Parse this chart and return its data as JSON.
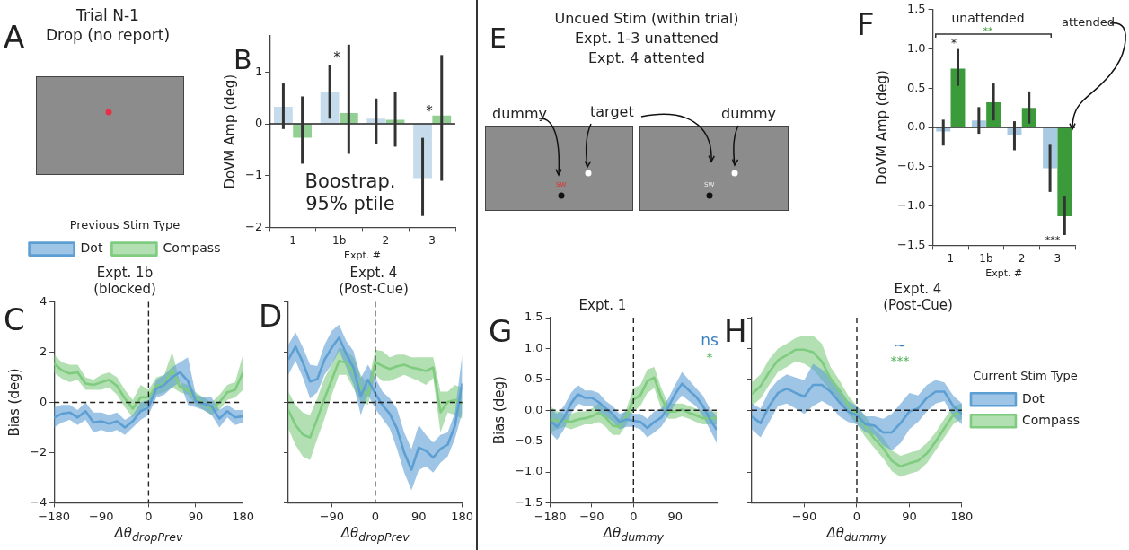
{
  "chart_data": [
    {
      "type": "other",
      "title": "Trial N-1",
      "subtitle": "Drop (no report)",
      "annotations": [
        "A"
      ]
    },
    {
      "type": "bar",
      "categories": [
        "1",
        "1b",
        "2",
        "3"
      ],
      "xlabel": "Expt. #",
      "ylabel": "DoVM Amp (deg)",
      "ylim": [
        -2,
        1.7
      ],
      "yticks": [
        -2,
        -1,
        0,
        1
      ],
      "series": [
        {
          "color": "#c6dbeb",
          "values": [
            0.33,
            0.62,
            0.1,
            -1.05
          ],
          "errors": [
            [
              -0.1,
              0.78
            ],
            [
              0.1,
              1.14
            ],
            [
              -0.38,
              0.49
            ],
            [
              -1.78,
              -0.27
            ]
          ]
        },
        {
          "color": "#92cf92",
          "values": [
            -0.27,
            0.21,
            0.08,
            0.16
          ],
          "errors": [
            [
              -0.77,
              0.53
            ],
            [
              -0.58,
              1.53
            ],
            [
              -0.44,
              0.62
            ],
            [
              -1.1,
              1.33
            ]
          ]
        }
      ],
      "ref_lines": [
        {
          "axis": "y",
          "value": 0
        }
      ],
      "annotations": [
        "B",
        "*",
        "*",
        "Boostrap.",
        "95% ptile"
      ]
    },
    {
      "type": "line",
      "title": "Expt. 1b\n(blocked)",
      "xlabel": "Δθ$_{dropPrev}$",
      "ylabel": "Bias (deg)",
      "xlim": [
        -180,
        180
      ],
      "xticks": [
        -180,
        -90,
        0,
        90,
        180
      ],
      "ylim": [
        -4,
        4
      ],
      "yticks": [
        -4,
        -2,
        0,
        2,
        4
      ],
      "legend": "top",
      "legend_title": "Previous Stim Type",
      "x": [
        -180,
        -165,
        -150,
        -135,
        -120,
        -105,
        -90,
        -75,
        -60,
        -45,
        -30,
        -15,
        0,
        15,
        30,
        45,
        60,
        75,
        90,
        105,
        120,
        135,
        150,
        165,
        180
      ],
      "series": [
        {
          "name": "Dot",
          "color": "#5d9fd3",
          "values": [
            -0.6,
            -0.45,
            -0.4,
            -0.6,
            -0.35,
            -0.8,
            -0.75,
            -0.85,
            -0.75,
            -1.0,
            -0.75,
            -0.35,
            -0.2,
            0.55,
            0.7,
            1.0,
            1.2,
            0.85,
            0.05,
            -0.05,
            -0.15,
            -0.65,
            -0.35,
            -0.6,
            -0.55
          ],
          "lower": [
            -1.0,
            -0.8,
            -0.7,
            -0.9,
            -0.7,
            -1.2,
            -1.1,
            -1.2,
            -1.1,
            -1.3,
            -1.0,
            -0.7,
            -0.5,
            0.2,
            0.3,
            0.6,
            0.8,
            -0.1,
            -0.2,
            -0.3,
            -0.5,
            -1.0,
            -0.6,
            -0.9,
            -0.8
          ],
          "upper": [
            -0.2,
            -0.1,
            -0.1,
            -0.3,
            0.0,
            -0.4,
            -0.4,
            -0.5,
            -0.4,
            -0.7,
            -0.5,
            0.0,
            0.1,
            0.9,
            1.1,
            1.4,
            1.6,
            1.8,
            0.3,
            0.2,
            0.2,
            -0.3,
            -0.1,
            -0.3,
            -0.3
          ]
        },
        {
          "name": "Compass",
          "color": "#7fcb7f",
          "values": [
            1.55,
            1.28,
            1.15,
            1.2,
            0.75,
            0.7,
            0.8,
            0.9,
            0.65,
            0.15,
            -0.25,
            0.2,
            0.2,
            0.65,
            0.75,
            1.3,
            0.6,
            0.5,
            0.15,
            -0.05,
            -0.25,
            0,
            0.4,
            0.5,
            1.2
          ],
          "lower": [
            1.2,
            0.95,
            0.8,
            0.9,
            0.5,
            0.5,
            0.5,
            0.6,
            0.3,
            -0.2,
            -0.6,
            -0.3,
            -0.1,
            0.3,
            0.4,
            0.6,
            0.4,
            0.3,
            -0.1,
            -0.3,
            -0.5,
            -0.3,
            0.1,
            0.2,
            0.5
          ],
          "upper": [
            1.9,
            1.6,
            1.5,
            1.5,
            1.0,
            0.9,
            1.1,
            1.2,
            1.0,
            0.5,
            0.1,
            0.7,
            0.5,
            1.0,
            1.1,
            2.0,
            0.8,
            0.7,
            0.4,
            0.2,
            0.0,
            0.3,
            0.7,
            0.8,
            1.9
          ]
        }
      ],
      "ref_lines": [
        {
          "axis": "x",
          "value": 0,
          "line_style": "dashed"
        },
        {
          "axis": "y",
          "value": 0,
          "line_style": "dashed"
        }
      ],
      "annotations": [
        "C"
      ]
    },
    {
      "type": "line",
      "title": "Expt. 4\n(Post-Cue)",
      "xlabel": "Δθ$_{dropPrev}$",
      "xlim": [
        -180,
        180
      ],
      "xticks": [
        -90,
        0,
        90,
        180
      ],
      "ylim": [
        -4,
        4
      ],
      "yticks": [
        -4,
        -2,
        0,
        2,
        4
      ],
      "tick_labels": "x",
      "x": [
        -180,
        -165,
        -150,
        -135,
        -120,
        -105,
        -90,
        -75,
        -60,
        -45,
        -30,
        -15,
        0,
        15,
        30,
        45,
        60,
        75,
        90,
        105,
        120,
        135,
        150,
        165,
        180
      ],
      "series": [
        {
          "color": "#5d9fd3",
          "values": [
            1.7,
            2.23,
            1.6,
            0.83,
            0.93,
            1.7,
            2.18,
            2.58,
            1.93,
            1.38,
            0.24,
            0.9,
            0.36,
            -0.11,
            -0.45,
            -1.05,
            -2.0,
            -2.68,
            -1.8,
            -1.93,
            -2.2,
            -1.85,
            -1.68,
            -0.93,
            0.75
          ],
          "lower": [
            1.1,
            1.65,
            1.0,
            0.15,
            0.4,
            1.1,
            1.5,
            2.05,
            1.4,
            0.7,
            -0.5,
            0.3,
            -0.25,
            -0.65,
            -1.05,
            -1.85,
            -2.8,
            -3.5,
            -2.7,
            -2.55,
            -2.8,
            -2.4,
            -2.15,
            -1.45,
            -0.4
          ],
          "upper": [
            2.3,
            2.8,
            2.2,
            1.5,
            1.45,
            2.3,
            2.85,
            3.1,
            2.45,
            2.05,
            0.97,
            1.5,
            0.97,
            0.43,
            0.16,
            -0.25,
            -1.2,
            -1.85,
            -0.9,
            -1.3,
            -1.6,
            -1.3,
            -1.2,
            -0.4,
            1.9
          ]
        },
        {
          "color": "#7fcb7f",
          "values": [
            -0.31,
            -0.9,
            -1.28,
            -1.4,
            -0.65,
            0.16,
            0.9,
            1.65,
            1.58,
            1.18,
            0.57,
            0.3,
            1.6,
            1.45,
            1.33,
            1.44,
            1.5,
            1.39,
            1.33,
            1.25,
            1.39,
            -0.39,
            0.02,
            0.1,
            -0.04
          ],
          "lower": [
            -1.05,
            -1.7,
            -2.15,
            -2.3,
            -1.45,
            -0.65,
            0.3,
            1.1,
            1.1,
            0.55,
            0.03,
            -0.1,
            1.1,
            0.85,
            0.85,
            0.97,
            1.1,
            0.97,
            0.85,
            0.7,
            0.97,
            -1.2,
            -0.4,
            -0.5,
            -0.65
          ],
          "upper": [
            0.43,
            -0.1,
            -0.4,
            -0.5,
            0.16,
            0.97,
            1.5,
            2.2,
            2.05,
            1.8,
            1.1,
            0.7,
            2.1,
            2.05,
            1.8,
            1.9,
            1.9,
            1.8,
            1.8,
            1.8,
            1.8,
            0.43,
            0.43,
            0.7,
            0.57
          ]
        }
      ],
      "ref_lines": [
        {
          "axis": "x",
          "value": 0,
          "line_style": "dashed"
        },
        {
          "axis": "y",
          "value": 0,
          "line_style": "dashed"
        }
      ],
      "annotations": [
        "D"
      ]
    },
    {
      "type": "other",
      "title": "Uncued Stim (within trial)",
      "annotations": [
        "E",
        "Expt. 1-3 unattened",
        "Expt. 4 attented",
        "dummy",
        "target",
        "dummy",
        "SW",
        "SW"
      ]
    },
    {
      "type": "bar",
      "categories": [
        "1",
        "1b",
        "2",
        "3"
      ],
      "xlabel": "Expt. #",
      "ylabel": "DoVM Amp (deg)",
      "ylim": [
        -1.5,
        1.5
      ],
      "yticks": [
        {
          "value": -1.5,
          "label": "−1.5"
        },
        {
          "value": -1,
          "label": "−1.0"
        },
        {
          "value": -0.5,
          "label": "−0.5"
        },
        {
          "value": 0,
          "label": "0.0"
        },
        {
          "value": 0.5,
          "label": "0.5"
        },
        {
          "value": 1,
          "label": "1.0"
        },
        {
          "value": 1.5,
          "label": "1.5"
        }
      ],
      "series": [
        {
          "color": "#a8cae2",
          "values": [
            -0.05,
            0.09,
            -0.1,
            -0.52
          ],
          "errors": [
            [
              -0.23,
              0.1
            ],
            [
              -0.08,
              0.26
            ],
            [
              -0.29,
              0.08
            ],
            [
              -0.82,
              -0.22
            ]
          ]
        },
        {
          "color": "#3b9b3b",
          "values": [
            0.75,
            0.32,
            0.25,
            -1.13
          ],
          "errors": [
            [
              0.53,
              1.0
            ],
            [
              0.09,
              0.56
            ],
            [
              0.05,
              0.46
            ],
            [
              -1.37,
              -0.88
            ]
          ]
        }
      ],
      "ref_lines": [
        {
          "axis": "y",
          "value": 0
        }
      ],
      "annotations": [
        "F",
        "unattended",
        "**",
        "*",
        "attended",
        "***"
      ]
    },
    {
      "type": "line",
      "title": "Expt. 1",
      "xlabel": "Δθ$_{dummy}$",
      "ylabel": "Bias (deg)",
      "xlim": [
        -180,
        180
      ],
      "xticks": [
        -180,
        -90,
        0,
        90
      ],
      "ylim": [
        -1.5,
        1.5
      ],
      "yticks": [
        {
          "value": -1.5,
          "label": "−1.5"
        },
        {
          "value": -1,
          "label": "−1.0"
        },
        {
          "value": -0.5,
          "label": "−0.5"
        },
        {
          "value": 0,
          "label": "0.0"
        },
        {
          "value": 0.5,
          "label": "0.5"
        },
        {
          "value": 1,
          "label": "1.0"
        },
        {
          "value": 1.5,
          "label": "1.5"
        }
      ],
      "x": [
        -180,
        -165,
        -150,
        -135,
        -120,
        -105,
        -90,
        -75,
        -60,
        -45,
        -30,
        -15,
        0,
        15,
        30,
        45,
        60,
        75,
        90,
        105,
        120,
        135,
        150,
        165,
        180
      ],
      "series": [
        {
          "color": "#5d9fd3",
          "values": [
            -0.17,
            -0.27,
            -0.12,
            0.11,
            0.26,
            0.2,
            0.2,
            0.13,
            0.03,
            -0.06,
            -0.19,
            -0.15,
            -0.17,
            -0.19,
            -0.29,
            -0.19,
            -0.12,
            0.05,
            0.26,
            0.43,
            0.32,
            0.22,
            0.07,
            -0.14,
            -0.32
          ],
          "lower": [
            -0.36,
            -0.48,
            -0.31,
            -0.06,
            0.11,
            0.07,
            0.07,
            -0.02,
            -0.1,
            -0.19,
            -0.31,
            -0.27,
            -0.27,
            -0.31,
            -0.44,
            -0.36,
            -0.27,
            -0.1,
            0.11,
            0.24,
            0.15,
            0.07,
            -0.1,
            -0.31,
            -0.53
          ],
          "upper": [
            0.03,
            -0.06,
            0.07,
            0.28,
            0.41,
            0.32,
            0.32,
            0.28,
            0.15,
            0.07,
            -0.06,
            -0.02,
            -0.06,
            -0.06,
            -0.14,
            -0.02,
            0.03,
            0.19,
            0.41,
            0.62,
            0.49,
            0.36,
            0.24,
            0.03,
            -0.1
          ]
        },
        {
          "color": "#7fcb7f",
          "values": [
            -0.15,
            -0.17,
            -0.17,
            -0.19,
            -0.15,
            -0.13,
            -0.1,
            -0.04,
            -0.12,
            -0.25,
            -0.27,
            -0.1,
            0.17,
            0.24,
            0.47,
            0.53,
            0.2,
            -0.02,
            -0.02,
            0.01,
            -0.04,
            -0.08,
            -0.13,
            -0.13,
            -0.13
          ],
          "lower": [
            -0.36,
            -0.31,
            -0.27,
            -0.31,
            -0.27,
            -0.23,
            -0.23,
            -0.19,
            -0.27,
            -0.4,
            -0.4,
            -0.23,
            -0.02,
            0.07,
            0.28,
            0.36,
            0.03,
            -0.14,
            -0.14,
            -0.1,
            -0.14,
            -0.19,
            -0.23,
            -0.23,
            -0.23
          ],
          "upper": [
            0.07,
            -0.02,
            -0.06,
            -0.06,
            -0.02,
            -0.02,
            0.03,
            0.11,
            0.03,
            -0.1,
            -0.14,
            0.03,
            0.36,
            0.41,
            0.66,
            0.7,
            0.36,
            0.11,
            0.11,
            0.11,
            0.07,
            0.03,
            -0.02,
            -0.02,
            -0.02
          ]
        }
      ],
      "ref_lines": [
        {
          "axis": "x",
          "value": 0,
          "line_style": "dashed"
        },
        {
          "axis": "y",
          "value": 0,
          "line_style": "dashed"
        }
      ],
      "annotations": [
        "G",
        "ns",
        "*"
      ]
    },
    {
      "type": "line",
      "title": "Expt. 4\n(Post-Cue)",
      "xlabel": "Δθ$_{dummy}$",
      "xlim": [
        -180,
        180
      ],
      "xticks": [
        -90,
        0,
        90,
        180
      ],
      "ylim": [
        -1.5,
        1.5
      ],
      "yticks": [
        -1.5,
        -1,
        -0.5,
        0,
        0.5,
        1,
        1.5
      ],
      "tick_labels": "x",
      "legend": "right",
      "legend_title": "Current Stim Type",
      "x": [
        -180,
        -165,
        -150,
        -135,
        -120,
        -105,
        -90,
        -75,
        -60,
        -45,
        -30,
        -15,
        0,
        15,
        30,
        45,
        60,
        75,
        90,
        105,
        120,
        135,
        150,
        165,
        180
      ],
      "series": [
        {
          "name": "Dot",
          "color": "#5d9fd3",
          "values": [
            -0.1,
            -0.21,
            0.07,
            0.28,
            0.35,
            0.28,
            0.22,
            0.41,
            0.41,
            0.3,
            0.13,
            -0.02,
            -0.08,
            -0.23,
            -0.25,
            -0.36,
            -0.36,
            -0.21,
            -0.02,
            0.03,
            0.2,
            0.3,
            0.3,
            0.07,
            -0.06
          ],
          "lower": [
            -0.31,
            -0.44,
            -0.19,
            0.07,
            0.11,
            0.03,
            -0.06,
            0.07,
            0.15,
            0.07,
            -0.1,
            -0.19,
            -0.23,
            -0.36,
            -0.4,
            -0.57,
            -0.65,
            -0.53,
            -0.31,
            -0.19,
            -0.02,
            0.11,
            0.15,
            -0.1,
            -0.23
          ],
          "upper": [
            0.11,
            0.03,
            0.32,
            0.49,
            0.58,
            0.53,
            0.49,
            0.75,
            0.66,
            0.53,
            0.36,
            0.15,
            0.07,
            -0.1,
            -0.1,
            -0.14,
            -0.06,
            0.11,
            0.28,
            0.24,
            0.41,
            0.49,
            0.45,
            0.24,
            0.11
          ]
        },
        {
          "name": "Compass",
          "color": "#7fcb7f",
          "values": [
            0.26,
            0.39,
            0.62,
            0.81,
            0.89,
            0.98,
            0.98,
            0.94,
            0.79,
            0.51,
            0.32,
            0.09,
            -0.08,
            -0.27,
            -0.46,
            -0.61,
            -0.82,
            -0.91,
            -0.86,
            -0.82,
            -0.7,
            -0.51,
            -0.29,
            -0.08,
            -0.02
          ],
          "lower": [
            0.07,
            0.19,
            0.41,
            0.62,
            0.7,
            0.79,
            0.75,
            0.66,
            0.49,
            0.32,
            0.15,
            -0.06,
            -0.23,
            -0.44,
            -0.61,
            -0.78,
            -0.99,
            -1.08,
            -1.03,
            -0.99,
            -0.86,
            -0.65,
            -0.44,
            -0.23,
            -0.14
          ],
          "upper": [
            0.45,
            0.58,
            0.83,
            1.0,
            1.08,
            1.17,
            1.21,
            1.21,
            1.08,
            0.7,
            0.49,
            0.24,
            0.07,
            -0.1,
            -0.31,
            -0.44,
            -0.65,
            -0.74,
            -0.69,
            -0.65,
            -0.53,
            -0.36,
            -0.14,
            0.07,
            0.11
          ]
        }
      ],
      "ref_lines": [
        {
          "axis": "x",
          "value": 0,
          "line_style": "dashed"
        },
        {
          "axis": "y",
          "value": 0,
          "line_style": "dashed"
        }
      ],
      "annotations": [
        "H",
        "~",
        "***"
      ]
    }
  ]
}
